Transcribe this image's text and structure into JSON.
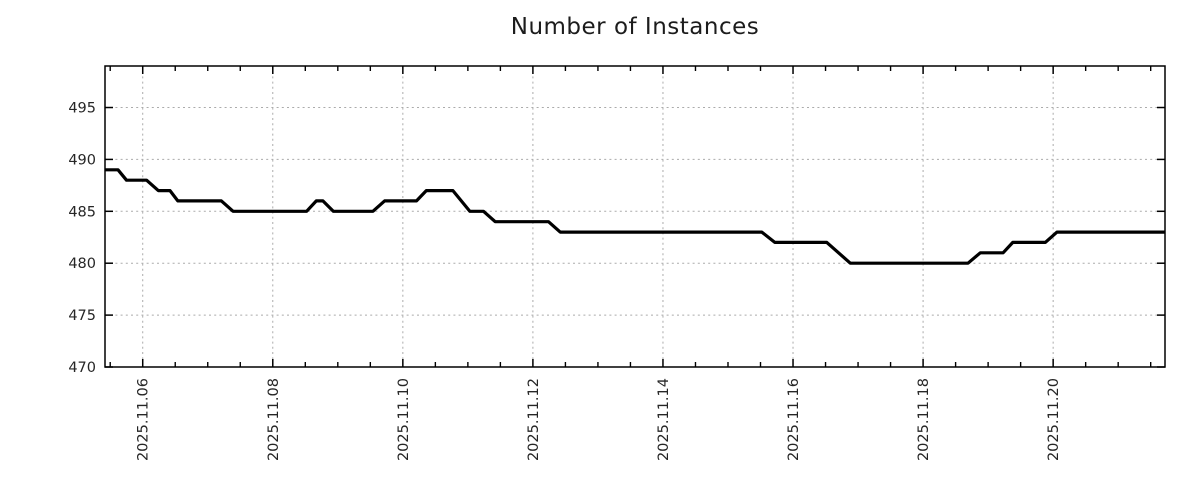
{
  "page": {
    "background": "#ffffff"
  },
  "chart_data": {
    "type": "line",
    "title": "Number of Instances",
    "legend": false,
    "grid": true,
    "x_axis": {
      "unit": "days relative to 2025-11-06 00:00",
      "range": [
        -0.58,
        15.72
      ],
      "major_ticks": [
        {
          "t": 0,
          "label": "2025.11.06"
        },
        {
          "t": 2,
          "label": "2025.11.08"
        },
        {
          "t": 4,
          "label": "2025.11.10"
        },
        {
          "t": 6,
          "label": "2025.11.12"
        },
        {
          "t": 8,
          "label": "2025.11.14"
        },
        {
          "t": 10,
          "label": "2025.11.16"
        },
        {
          "t": 12,
          "label": "2025.11.18"
        },
        {
          "t": 14,
          "label": "2025.11.20"
        }
      ],
      "minor_tick_interval": 0.5,
      "label_rotation_deg": -90
    },
    "y_axis": {
      "range": [
        470,
        499
      ],
      "ticks": [
        470,
        475,
        480,
        485,
        490,
        495
      ]
    },
    "series": [
      {
        "name": "instances",
        "color": "#000000",
        "line_width": 3.2,
        "points": [
          [
            -0.58,
            489
          ],
          [
            -0.38,
            489
          ],
          [
            -0.25,
            488
          ],
          [
            0.06,
            488
          ],
          [
            0.24,
            487
          ],
          [
            0.42,
            487
          ],
          [
            0.54,
            486
          ],
          [
            1.21,
            486
          ],
          [
            1.39,
            485
          ],
          [
            2.52,
            485
          ],
          [
            2.67,
            486
          ],
          [
            2.77,
            486
          ],
          [
            2.93,
            485
          ],
          [
            3.54,
            485
          ],
          [
            3.72,
            486
          ],
          [
            4.21,
            486
          ],
          [
            4.36,
            487
          ],
          [
            4.77,
            487
          ],
          [
            5.03,
            485
          ],
          [
            5.24,
            485
          ],
          [
            5.42,
            484
          ],
          [
            6.24,
            484
          ],
          [
            6.42,
            483
          ],
          [
            9.52,
            483
          ],
          [
            9.72,
            482
          ],
          [
            10.52,
            482
          ],
          [
            10.88,
            480
          ],
          [
            12.69,
            480
          ],
          [
            12.88,
            481
          ],
          [
            13.23,
            481
          ],
          [
            13.38,
            482
          ],
          [
            13.88,
            482
          ],
          [
            14.06,
            483
          ],
          [
            15.72,
            483
          ]
        ]
      }
    ]
  },
  "style": {
    "grid_color": "#ababab",
    "axis_color": "#000000",
    "text_color": "#262626",
    "tick_label_size": 14.5,
    "title_size": 23
  }
}
